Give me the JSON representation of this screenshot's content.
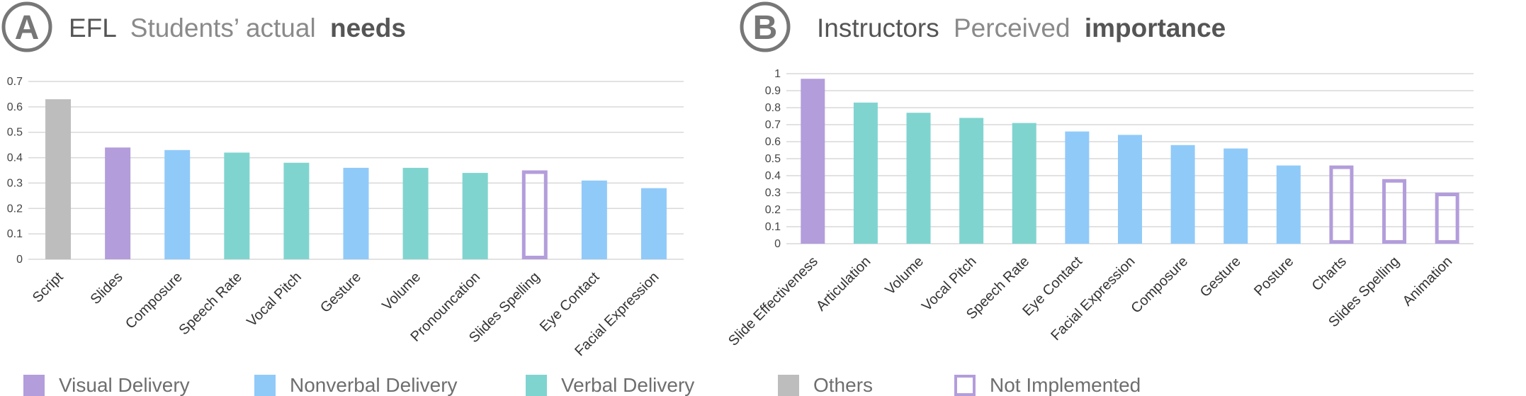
{
  "panels": [
    {
      "letter": "A",
      "title_parts": [
        {
          "text": "EFL",
          "style": "dark"
        },
        {
          "text": "Students’ actual",
          "style": "light"
        },
        {
          "text": "needs",
          "style": "bold"
        }
      ]
    },
    {
      "letter": "B",
      "title_parts": [
        {
          "text": "Instructors",
          "style": "dark"
        },
        {
          "text": "Perceived",
          "style": "light"
        },
        {
          "text": "importance",
          "style": "bold"
        }
      ]
    }
  ],
  "legend": [
    {
      "label": "Visual Delivery",
      "color": "#b39ddb",
      "style": "filled"
    },
    {
      "label": "Nonverbal Delivery",
      "color": "#90caf9",
      "style": "filled"
    },
    {
      "label": "Verbal Delivery",
      "color": "#80d4d0",
      "style": "filled"
    },
    {
      "label": "Others",
      "color": "#bdbdbd",
      "style": "filled"
    },
    {
      "label": "Not Implemented",
      "color": "#b39ddb",
      "style": "outline"
    }
  ],
  "chart_data": [
    {
      "type": "bar",
      "categories": [
        "Script",
        "Slides",
        "Composure",
        "Speech Rate",
        "Vocal Pitch",
        "Gesture",
        "Volume",
        "Pronouncation",
        "Slides Spelling",
        "Eye Contact",
        "Facial Expression"
      ],
      "values": [
        0.63,
        0.44,
        0.43,
        0.42,
        0.38,
        0.36,
        0.36,
        0.34,
        0.35,
        0.31,
        0.28
      ],
      "groups": [
        "Others",
        "Visual Delivery",
        "Nonverbal Delivery",
        "Verbal Delivery",
        "Verbal Delivery",
        "Nonverbal Delivery",
        "Verbal Delivery",
        "Verbal Delivery",
        "Not Implemented",
        "Nonverbal Delivery",
        "Nonverbal Delivery"
      ],
      "yticks": [
        "0",
        "0.1",
        "0.2",
        "0.3",
        "0.4",
        "0.5",
        "0.6",
        "0.7"
      ],
      "ylim": [
        0,
        0.7
      ],
      "grid": true
    },
    {
      "type": "bar",
      "categories": [
        "Slide Effectiveness",
        "Articulation",
        "Volume",
        "Vocal Pitch",
        "Speech Rate",
        "Eye Contact",
        "Facial Expression",
        "Composure",
        "Gesture",
        "Posture",
        "Charts",
        "Slides Spelling",
        "Animation"
      ],
      "values": [
        0.97,
        0.83,
        0.77,
        0.74,
        0.71,
        0.66,
        0.64,
        0.58,
        0.56,
        0.46,
        0.46,
        0.38,
        0.3
      ],
      "groups": [
        "Visual Delivery",
        "Verbal Delivery",
        "Verbal Delivery",
        "Verbal Delivery",
        "Verbal Delivery",
        "Nonverbal Delivery",
        "Nonverbal Delivery",
        "Nonverbal Delivery",
        "Nonverbal Delivery",
        "Nonverbal Delivery",
        "Not Implemented",
        "Not Implemented",
        "Not Implemented"
      ],
      "yticks": [
        "0",
        "0.1",
        "0.2",
        "0.3",
        "0.4",
        "0.5",
        "0.6",
        "0.7",
        "0.8",
        "0.9",
        "1"
      ],
      "ylim": [
        0,
        1
      ],
      "grid": true
    }
  ]
}
